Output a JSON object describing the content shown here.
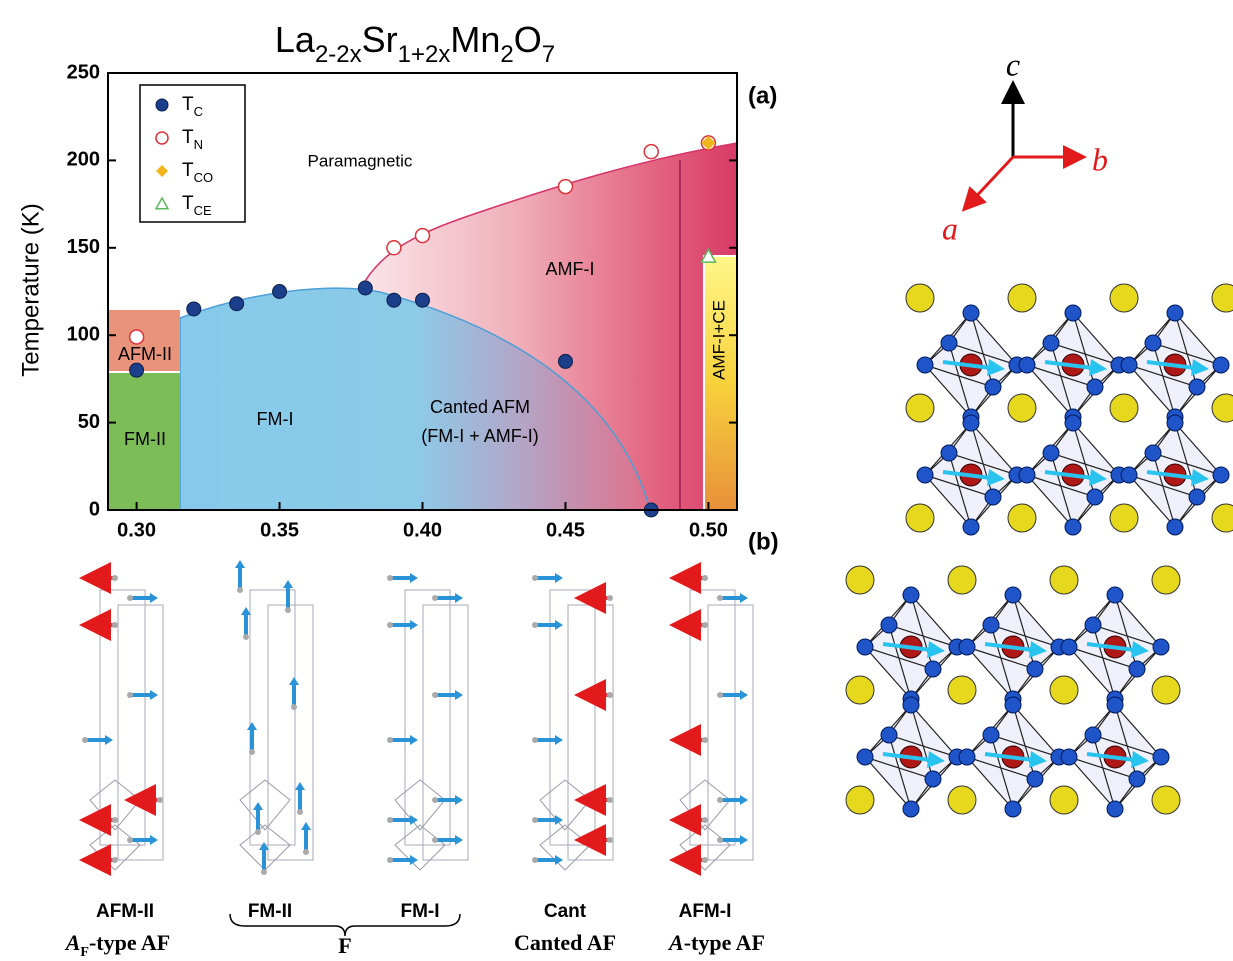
{
  "chart_data": {
    "type": "scatter",
    "title": [
      "La",
      "2-2x",
      "Sr",
      "1+2x",
      "Mn",
      "2",
      "O",
      "7"
    ],
    "y_label": "Temperature (K)",
    "panel_label": "(a)",
    "xlim": [
      0.29,
      0.51
    ],
    "ylim": [
      0,
      250
    ],
    "xticks": [
      {
        "value": 0.3,
        "label": "0.30"
      },
      {
        "value": 0.35,
        "label": "0.35"
      },
      {
        "value": 0.4,
        "label": "0.40"
      },
      {
        "value": 0.45,
        "label": "0.45"
      },
      {
        "value": 0.5,
        "label": "0.50"
      }
    ],
    "yticks": [
      0,
      50,
      100,
      150,
      200,
      250
    ],
    "legend": "upper left",
    "series": [
      {
        "name": [
          "T",
          "C"
        ],
        "color": "#1c3f8c",
        "marker": "circle",
        "x": [
          0.3,
          0.32,
          0.335,
          0.35,
          0.38,
          0.39,
          0.4,
          0.45,
          0.48
        ],
        "values": [
          80,
          115,
          118,
          125,
          127,
          120,
          120,
          85,
          0
        ]
      },
      {
        "name": [
          "T",
          "N"
        ],
        "color": "#e0303a",
        "marker": "circle-open",
        "x": [
          0.3,
          0.39,
          0.4,
          0.45,
          0.48,
          0.5
        ],
        "values": [
          99,
          150,
          157,
          185,
          205,
          210
        ]
      },
      {
        "name": [
          "T",
          "CO"
        ],
        "color": "#f2b51c",
        "marker": "diamond",
        "x": [
          0.5
        ],
        "values": [
          210
        ]
      },
      {
        "name": [
          "T",
          "CE"
        ],
        "color": "#5cb85c",
        "marker": "triangle-open",
        "x": [
          0.5
        ],
        "values": [
          145
        ]
      }
    ],
    "annotations": [
      "Paramagnetic",
      "AMF-I",
      "AFM-II",
      "FM-II",
      "FM-I",
      "Canted AFM",
      "(FM-I + AMF-I)",
      "AMF-I+CE"
    ]
  },
  "panel_b": {
    "label": "(b)",
    "names": [
      "AFM-II",
      "FM-II",
      "FM-I",
      "Cant",
      "AFM-I"
    ],
    "types": {
      "af_type": [
        "A",
        "F",
        "-type AF"
      ],
      "f": "F",
      "canted": "Canted AF",
      "a_type": [
        "A",
        "-type AF"
      ]
    }
  },
  "crystal": {
    "axes": [
      "c",
      "b",
      "a"
    ]
  }
}
